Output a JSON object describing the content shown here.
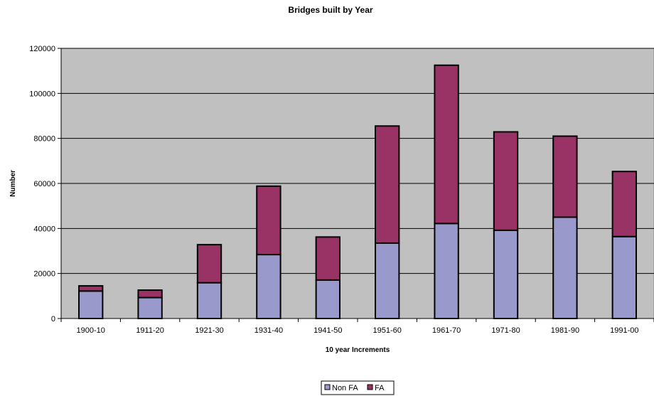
{
  "chart_data": {
    "type": "bar",
    "stacked": true,
    "title": "Bridges built by Year",
    "xlabel": "10 year Increments",
    "ylabel": "Number",
    "categories": [
      "1900-10",
      "1911-20",
      "1921-30",
      "1931-40",
      "1941-50",
      "1951-60",
      "1961-70",
      "1971-80",
      "1981-90",
      "1991-00"
    ],
    "series": [
      {
        "name": "Non FA",
        "color": "#9999cc",
        "values": [
          12200,
          9300,
          15900,
          28400,
          17100,
          33500,
          42200,
          39200,
          45000,
          36400
        ]
      },
      {
        "name": "FA",
        "color": "#993366",
        "values": [
          2300,
          3300,
          16900,
          30400,
          19100,
          52000,
          70300,
          43700,
          36000,
          28900
        ]
      }
    ],
    "ylim": [
      0,
      120000
    ],
    "yticks": [
      0,
      20000,
      40000,
      60000,
      80000,
      100000,
      120000
    ],
    "plot_background": "#c0c0c0",
    "grid": true,
    "legend_position": "bottom"
  }
}
